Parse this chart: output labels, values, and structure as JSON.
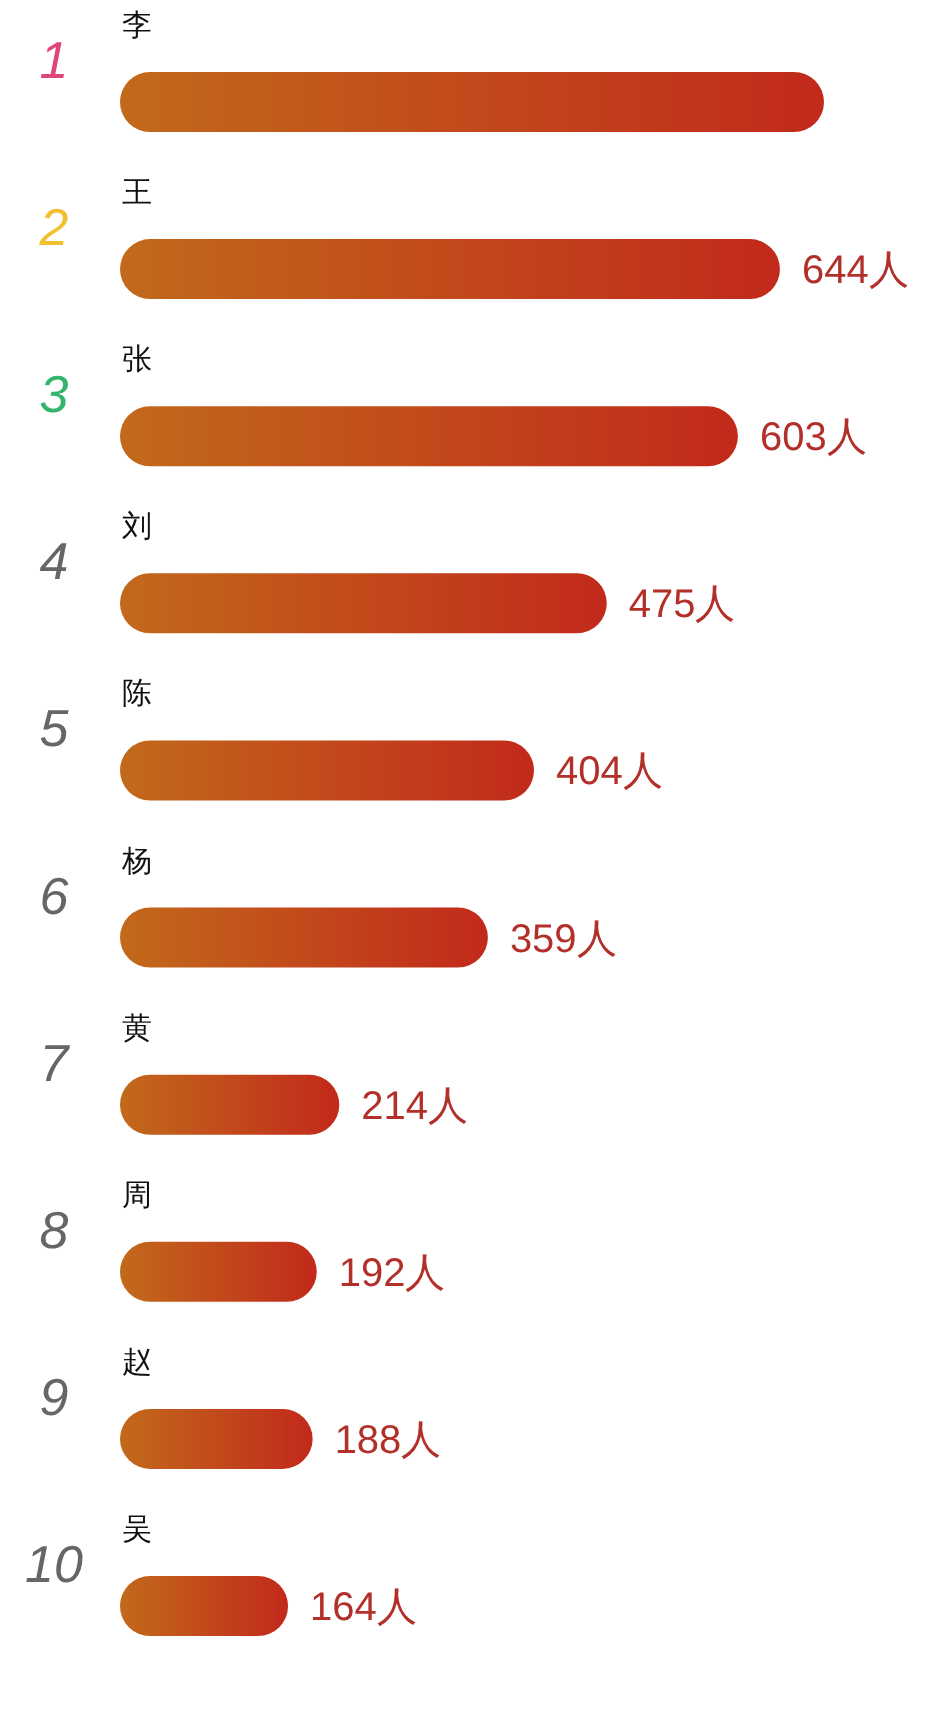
{
  "chart_data": {
    "type": "bar",
    "orientation": "horizontal",
    "categories": [
      "李",
      "王",
      "张",
      "刘",
      "陈",
      "杨",
      "黄",
      "周",
      "赵",
      "吴"
    ],
    "values": [
      687,
      644,
      603,
      475,
      404,
      359,
      214,
      192,
      188,
      164
    ],
    "value_labels": [
      null,
      "644人",
      "603人",
      "475人",
      "404人",
      "359人",
      "214人",
      "192人",
      "188人",
      "164人"
    ],
    "color": "#c2481b",
    "annotations": [
      "1",
      "2",
      "3",
      "4",
      "5",
      "6",
      "7",
      "8",
      "9",
      "10"
    ]
  }
}
